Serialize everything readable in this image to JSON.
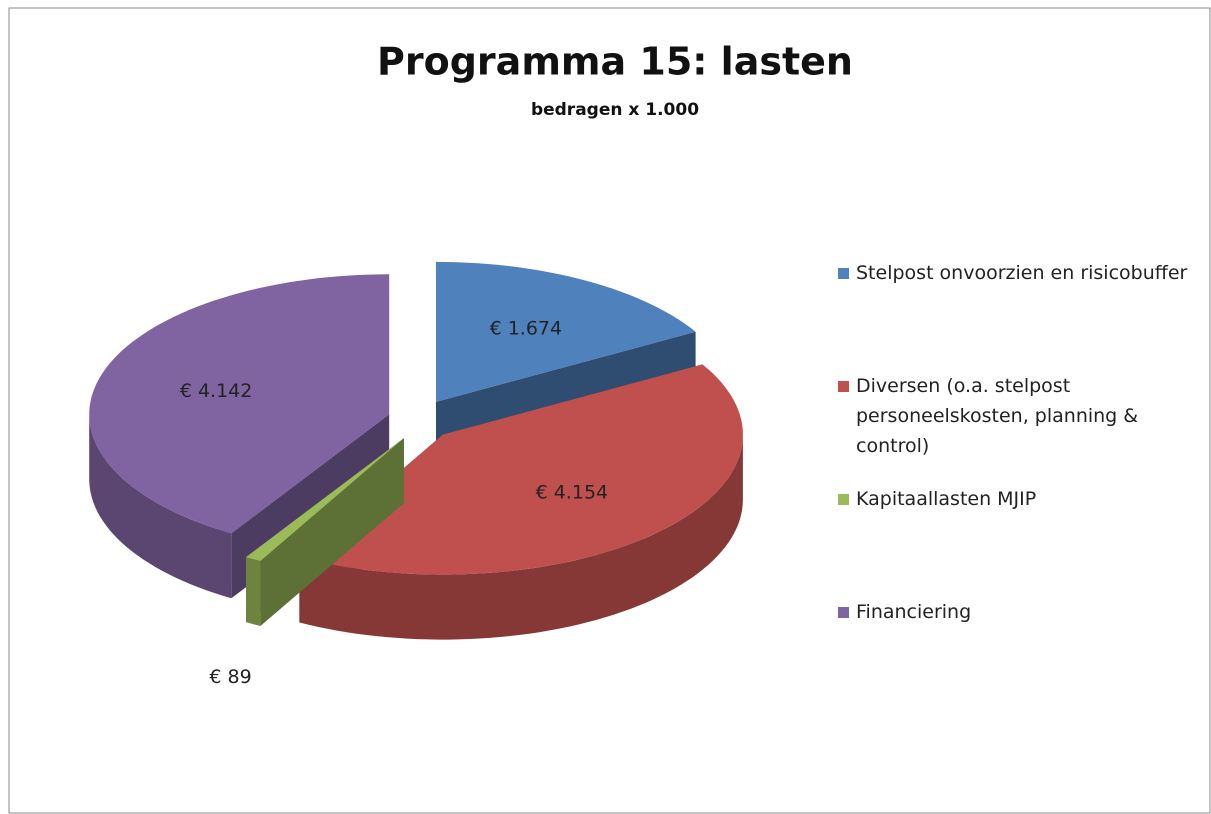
{
  "chart_data": {
    "type": "pie",
    "title": "Programma 15: lasten",
    "subtitle": "bedragen x 1.000",
    "categories": [
      "Stelpost onvoorzien en risicobuffer",
      "Diversen (o.a. stelpost personeelskosten, planning & control)",
      "Kapitaallasten MJIP",
      "Financiering"
    ],
    "values": [
      1674,
      4154,
      89,
      4142
    ],
    "value_labels": [
      "€ 1.674",
      "€ 4.154",
      "€ 89",
      "€ 4.142"
    ],
    "colors": [
      "#4f81bd",
      "#c0504d",
      "#9bbb59",
      "#8064a2"
    ],
    "legend": "right",
    "exploded": true,
    "three_d": true
  }
}
